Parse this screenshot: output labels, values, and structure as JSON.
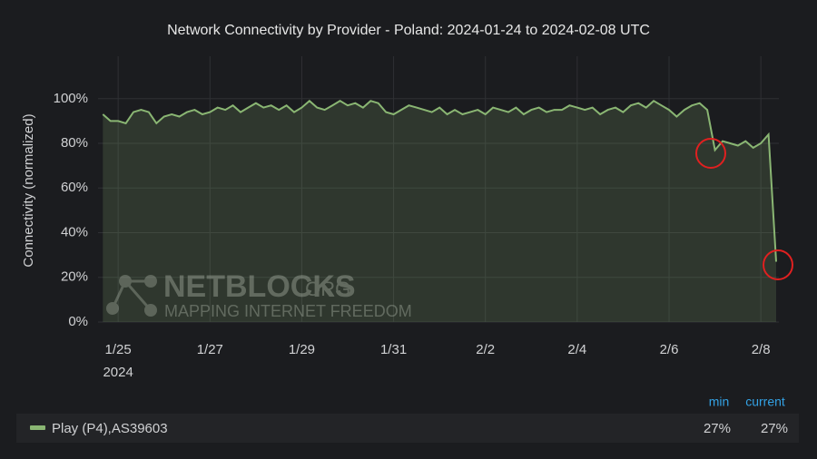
{
  "chart_data": {
    "type": "area",
    "title": "Network Connectivity by Provider - Poland: 2024-01-24 to 2024-02-08 UTC",
    "y_label": "Connectivity (normalized)",
    "x_sublabel": "2024",
    "categories": [
      null,
      null,
      "1/25",
      null,
      null,
      null,
      null,
      null,
      null,
      null,
      null,
      null,
      null,
      null,
      "1/27",
      null,
      null,
      null,
      null,
      null,
      null,
      null,
      null,
      null,
      null,
      null,
      "1/29",
      null,
      null,
      null,
      null,
      null,
      null,
      null,
      null,
      null,
      null,
      null,
      "1/31",
      null,
      null,
      null,
      null,
      null,
      null,
      null,
      null,
      null,
      null,
      null,
      "2/2",
      null,
      null,
      null,
      null,
      null,
      null,
      null,
      null,
      null,
      null,
      null,
      "2/4",
      null,
      null,
      null,
      null,
      null,
      null,
      null,
      null,
      null,
      null,
      null,
      "2/6",
      null,
      null,
      null,
      null,
      null,
      null,
      null,
      null,
      null,
      null,
      null,
      "2/8",
      null,
      null
    ],
    "series": [
      {
        "name": "Play (P4),AS39603",
        "color": "#8ab673",
        "values": [
          93,
          90,
          90,
          89,
          94,
          95,
          94,
          89,
          92,
          93,
          92,
          94,
          95,
          93,
          94,
          96,
          95,
          97,
          94,
          96,
          98,
          96,
          97,
          95,
          97,
          94,
          96,
          99,
          96,
          95,
          97,
          99,
          97,
          98,
          96,
          99,
          98,
          94,
          93,
          95,
          97,
          96,
          95,
          94,
          96,
          93,
          95,
          93,
          94,
          95,
          93,
          96,
          95,
          94,
          96,
          93,
          95,
          96,
          94,
          95,
          95,
          97,
          96,
          95,
          96,
          93,
          95,
          96,
          94,
          97,
          98,
          96,
          99,
          97,
          95,
          92,
          95,
          97,
          98,
          95,
          77,
          81,
          80,
          79,
          81,
          78,
          80,
          84,
          27
        ],
        "legend_values": [
          27,
          27
        ],
        "legend_value_labels": [
          "27%",
          "27%"
        ]
      }
    ],
    "legend_columns": [
      "min",
      "current"
    ],
    "ylim": [
      0,
      119
    ],
    "yticks": [
      {
        "value": 0,
        "label": "0%"
      },
      {
        "value": 20,
        "label": "20%"
      },
      {
        "value": 40,
        "label": "40%"
      },
      {
        "value": 60,
        "label": "60%"
      },
      {
        "value": 80,
        "label": "80%"
      },
      {
        "value": 100,
        "label": "100%"
      }
    ],
    "grid": true,
    "watermark": {
      "name": "NETBLOCKS",
      "suffix": ".ORG",
      "tagline": "MAPPING INTERNET FREEDOM"
    }
  }
}
